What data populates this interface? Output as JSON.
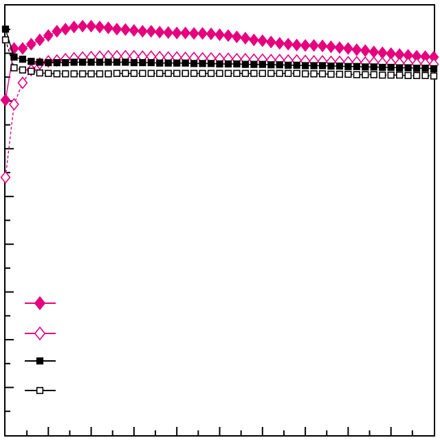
{
  "chart_data": {
    "type": "line",
    "title": "",
    "xlabel": "",
    "ylabel": "",
    "xlim": [
      0,
      50
    ],
    "ylim": [
      0,
      1
    ],
    "x_ticks": 20,
    "y_ticks": 18,
    "legend_position": "bottom-left",
    "x": [
      0,
      1,
      2,
      3,
      4,
      5,
      6,
      7,
      8,
      9,
      10,
      11,
      12,
      13,
      14,
      15,
      16,
      17,
      18,
      19,
      20,
      21,
      22,
      23,
      24,
      25,
      26,
      27,
      28,
      29,
      30,
      31,
      32,
      33,
      34,
      35,
      36,
      37,
      38,
      39,
      40,
      41,
      42,
      43,
      44,
      45,
      46,
      47,
      48,
      49,
      50
    ],
    "series": [
      {
        "color": "#e6007e",
        "marker": "diamond",
        "filled": true,
        "dash": false,
        "values": [
          0.78,
          0.9,
          0.9,
          0.91,
          0.92,
          0.93,
          0.94,
          0.945,
          0.95,
          0.952,
          0.952,
          0.95,
          0.948,
          0.945,
          0.944,
          0.942,
          0.94,
          0.94,
          0.938,
          0.937,
          0.936,
          0.936,
          0.935,
          0.935,
          0.934,
          0.932,
          0.93,
          0.927,
          0.924,
          0.92,
          0.918,
          0.915,
          0.912,
          0.91,
          0.908,
          0.907,
          0.907,
          0.906,
          0.904,
          0.902,
          0.9,
          0.897,
          0.895,
          0.892,
          0.89,
          0.888,
          0.886,
          0.884,
          0.882,
          0.881,
          0.88
        ]
      },
      {
        "color": "#e6007e",
        "marker": "diamond",
        "filled": false,
        "dash": true,
        "values": [
          0.6,
          0.77,
          0.82,
          0.85,
          0.865,
          0.87,
          0.872,
          0.875,
          0.877,
          0.879,
          0.88,
          0.881,
          0.882,
          0.882,
          0.882,
          0.882,
          0.881,
          0.881,
          0.88,
          0.879,
          0.879,
          0.878,
          0.878,
          0.877,
          0.877,
          0.876,
          0.876,
          0.875,
          0.875,
          0.874,
          0.874,
          0.873,
          0.873,
          0.872,
          0.872,
          0.871,
          0.87,
          0.87,
          0.869,
          0.869,
          0.868,
          0.868,
          0.867,
          0.867,
          0.866,
          0.866,
          0.865,
          0.865,
          0.864,
          0.864,
          0.863
        ]
      },
      {
        "color": "#000000",
        "marker": "square",
        "filled": true,
        "dash": false,
        "values": [
          0.945,
          0.88,
          0.875,
          0.87,
          0.868,
          0.867,
          0.867,
          0.867,
          0.868,
          0.868,
          0.868,
          0.868,
          0.868,
          0.868,
          0.868,
          0.867,
          0.867,
          0.867,
          0.866,
          0.866,
          0.866,
          0.866,
          0.865,
          0.865,
          0.865,
          0.864,
          0.864,
          0.864,
          0.863,
          0.863,
          0.863,
          0.862,
          0.862,
          0.861,
          0.861,
          0.86,
          0.86,
          0.86,
          0.859,
          0.859,
          0.858,
          0.858,
          0.857,
          0.857,
          0.856,
          0.856,
          0.855,
          0.855,
          0.854,
          0.854,
          0.853
        ]
      },
      {
        "color": "#000000",
        "marker": "square",
        "filled": false,
        "dash": true,
        "values": [
          0.92,
          0.855,
          0.85,
          0.847,
          0.843,
          0.842,
          0.841,
          0.841,
          0.841,
          0.841,
          0.841,
          0.841,
          0.841,
          0.842,
          0.842,
          0.842,
          0.842,
          0.842,
          0.842,
          0.842,
          0.842,
          0.842,
          0.842,
          0.842,
          0.842,
          0.842,
          0.842,
          0.842,
          0.842,
          0.842,
          0.842,
          0.842,
          0.842,
          0.842,
          0.842,
          0.841,
          0.841,
          0.841,
          0.84,
          0.84,
          0.84,
          0.839,
          0.839,
          0.839,
          0.838,
          0.838,
          0.838,
          0.837,
          0.837,
          0.837,
          0.836
        ]
      }
    ]
  }
}
